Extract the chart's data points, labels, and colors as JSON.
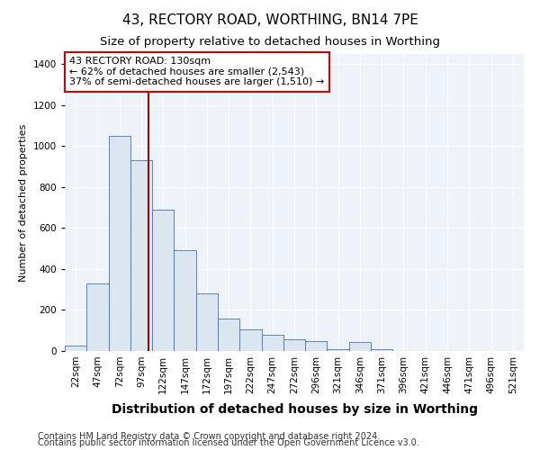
{
  "title": "43, RECTORY ROAD, WORTHING, BN14 7PE",
  "subtitle": "Size of property relative to detached houses in Worthing",
  "xlabel": "Distribution of detached houses by size in Worthing",
  "ylabel": "Number of detached properties",
  "bins": [
    "22sqm",
    "47sqm",
    "72sqm",
    "97sqm",
    "122sqm",
    "147sqm",
    "172sqm",
    "197sqm",
    "222sqm",
    "247sqm",
    "272sqm",
    "296sqm",
    "321sqm",
    "346sqm",
    "371sqm",
    "396sqm",
    "421sqm",
    "446sqm",
    "471sqm",
    "496sqm",
    "521sqm"
  ],
  "values": [
    25,
    330,
    1050,
    930,
    690,
    490,
    280,
    160,
    105,
    80,
    55,
    50,
    10,
    45,
    10,
    0,
    0,
    0,
    0,
    0,
    0
  ],
  "bar_color": "#dce6f1",
  "bar_edge_color": "#4472c4",
  "bar_width": 1.0,
  "vline_color": "#8b0000",
  "vline_pos": 3.32,
  "annotation_text": "43 RECTORY ROAD: 130sqm\n← 62% of detached houses are smaller (2,543)\n37% of semi-detached houses are larger (1,510) →",
  "annotation_box_color": "#ffffff",
  "annotation_box_edge_color": "#cc0000",
  "ylim": [
    0,
    1450
  ],
  "yticks": [
    0,
    200,
    400,
    600,
    800,
    1000,
    1200,
    1400
  ],
  "footnote1": "Contains HM Land Registry data © Crown copyright and database right 2024.",
  "footnote2": "Contains public sector information licensed under the Open Government Licence v3.0.",
  "background_color": "#eef2f9",
  "grid_color": "#ffffff",
  "title_fontsize": 11,
  "subtitle_fontsize": 9.5,
  "xlabel_fontsize": 10,
  "ylabel_fontsize": 8,
  "tick_fontsize": 7.5,
  "annotation_fontsize": 8,
  "footnote_fontsize": 7
}
